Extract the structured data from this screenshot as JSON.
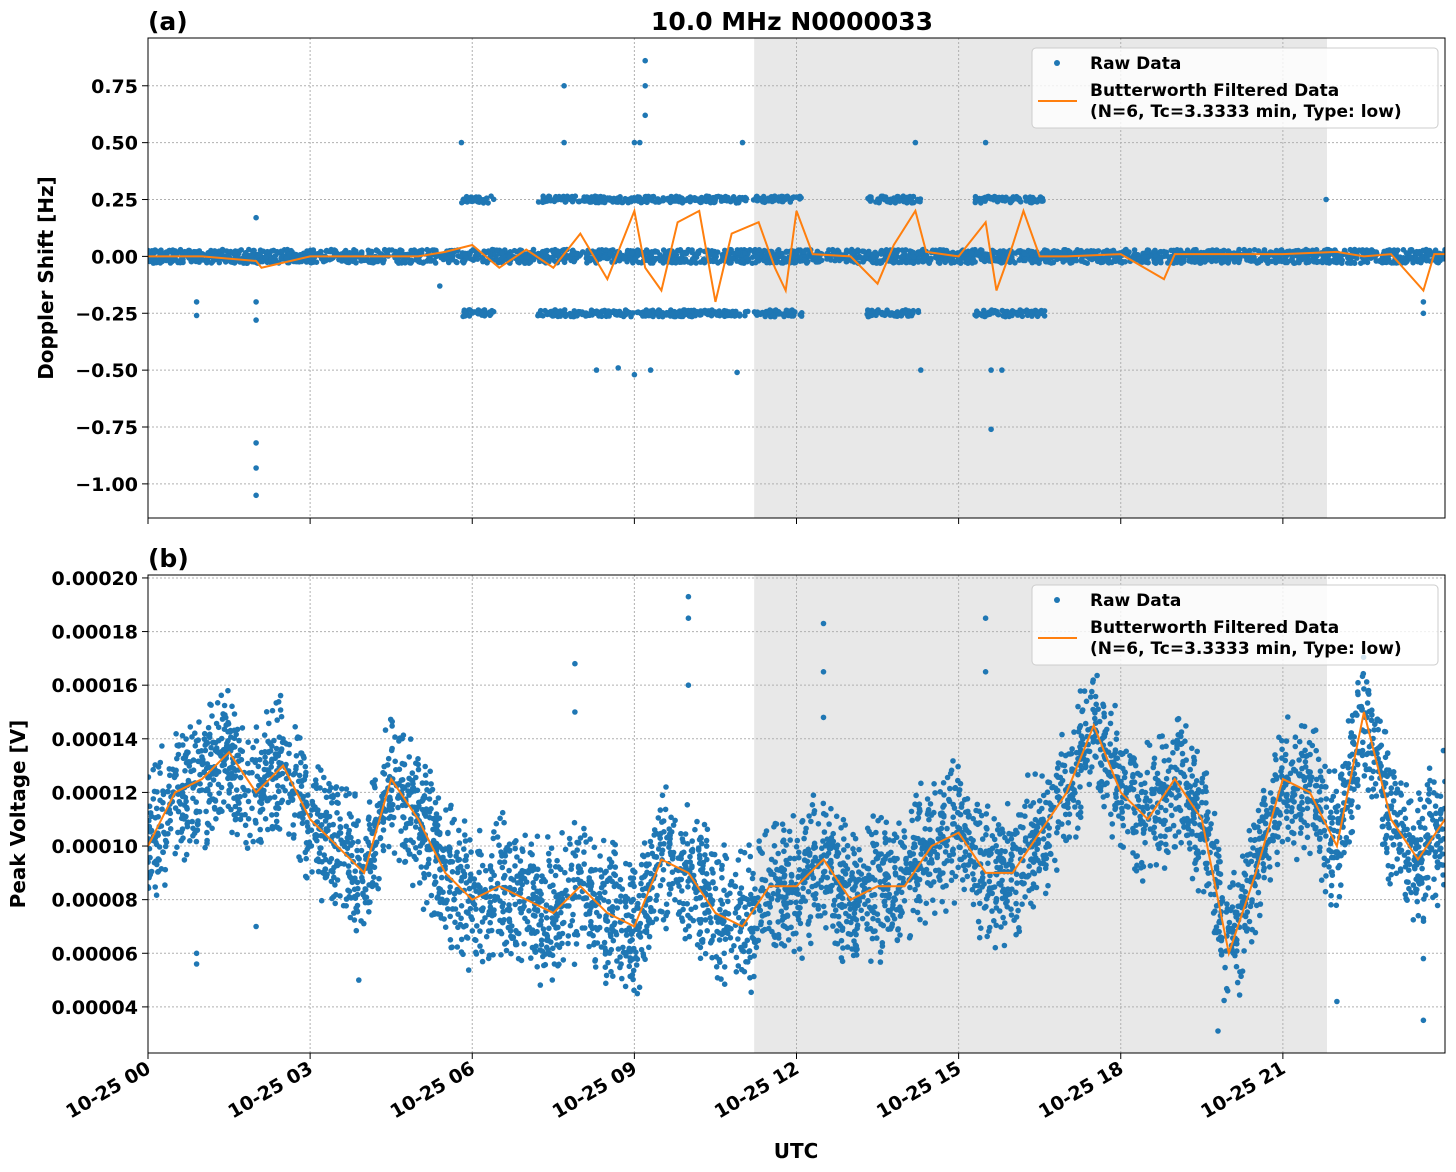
{
  "title": "10.0 MHz N0000033",
  "colors": {
    "raw": "#1f77b4",
    "filtered": "#ff7f0e",
    "shade": "#e8e8e8"
  },
  "legend": {
    "raw": "Raw Data",
    "filtered_line1": "Butterworth Filtered Data",
    "filtered_line2": "(N=6, Tc=3.3333 min, Type: low)",
    "placement": "upper right"
  },
  "xlabel": "UTC",
  "x_ticks": [
    "10-25 00",
    "10-25 03",
    "10-25 06",
    "10-25 09",
    "10-25 12",
    "10-25 15",
    "10-25 18",
    "10-25 21"
  ],
  "x_tick_hours": [
    0,
    3,
    6,
    9,
    12,
    15,
    18,
    21
  ],
  "shaded_interval_utc": [
    "10-25 11:13",
    "10-25 21:49"
  ],
  "chart_data": [
    {
      "type": "scatter",
      "panel_label": "(a)",
      "ylabel": "Doppler Shift [Hz]",
      "xlim_hours": [
        0,
        24
      ],
      "ylim": [
        -1.15,
        0.96
      ],
      "y_ticks": [
        0.75,
        0.5,
        0.25,
        0,
        -0.25,
        -0.5,
        -0.75,
        -1.0
      ],
      "y_tick_labels": [
        "0.75",
        "0.50",
        "0.25",
        "0.00",
        "−0.25",
        "−0.50",
        "−0.75",
        "−1.00"
      ],
      "grid": true,
      "raw_band": {
        "center": 0.0,
        "half_width": 0.03
      },
      "raw_clusters": [
        {
          "from_hour": 5.8,
          "to_hour": 6.4,
          "values": [
            0.25,
            -0.25
          ]
        },
        {
          "from_hour": 7.2,
          "to_hour": 11.1,
          "values": [
            0.25,
            -0.25
          ]
        },
        {
          "from_hour": 11.2,
          "to_hour": 12.1,
          "values": [
            0.25,
            -0.25
          ]
        },
        {
          "from_hour": 13.3,
          "to_hour": 14.3,
          "values": [
            0.25,
            -0.25
          ]
        },
        {
          "from_hour": 15.3,
          "to_hour": 16.6,
          "values": [
            0.25,
            -0.25
          ]
        }
      ],
      "raw_outliers": [
        [
          0.9,
          -0.2
        ],
        [
          0.9,
          -0.26
        ],
        [
          2.0,
          0.17
        ],
        [
          2.0,
          -0.2
        ],
        [
          2.0,
          -0.28
        ],
        [
          2.0,
          -0.82
        ],
        [
          2.0,
          -0.93
        ],
        [
          2.0,
          -1.05
        ],
        [
          5.8,
          0.5
        ],
        [
          5.4,
          -0.13
        ],
        [
          7.7,
          0.75
        ],
        [
          7.7,
          0.5
        ],
        [
          8.3,
          -0.5
        ],
        [
          8.7,
          -0.49
        ],
        [
          9.0,
          0.5
        ],
        [
          9.2,
          0.86
        ],
        [
          9.2,
          0.75
        ],
        [
          9.2,
          0.62
        ],
        [
          9.1,
          0.5
        ],
        [
          9.3,
          -0.5
        ],
        [
          9.0,
          -0.52
        ],
        [
          10.9,
          -0.51
        ],
        [
          11.0,
          0.5
        ],
        [
          14.2,
          0.5
        ],
        [
          14.3,
          -0.5
        ],
        [
          15.5,
          0.5
        ],
        [
          15.6,
          -0.5
        ],
        [
          15.6,
          -0.76
        ],
        [
          15.8,
          -0.5
        ],
        [
          21.8,
          0.25
        ],
        [
          23.6,
          -0.2
        ],
        [
          23.6,
          -0.25
        ]
      ],
      "filtered": {
        "x_hours": [
          0,
          1,
          2,
          2.1,
          3,
          4,
          5,
          5.5,
          6,
          6.5,
          7,
          7.5,
          8,
          8.5,
          9,
          9.2,
          9.5,
          9.8,
          10.2,
          10.5,
          10.8,
          11.3,
          11.6,
          11.8,
          12,
          12.3,
          13,
          13.5,
          13.8,
          14.2,
          14.4,
          15,
          15.5,
          15.7,
          16,
          16.2,
          16.5,
          17,
          18,
          18.8,
          19,
          20,
          21,
          22,
          22.5,
          23,
          23.6,
          23.8,
          24
        ],
        "values": [
          0,
          0,
          -0.02,
          -0.05,
          0,
          0,
          0,
          0.02,
          0.05,
          -0.05,
          0.03,
          -0.05,
          0.1,
          -0.1,
          0.2,
          -0.05,
          -0.15,
          0.15,
          0.2,
          -0.2,
          0.1,
          0.15,
          -0.05,
          -0.15,
          0.2,
          0.01,
          0,
          -0.12,
          0.05,
          0.2,
          0.02,
          0,
          0.15,
          -0.15,
          0.05,
          0.2,
          0,
          0,
          0.01,
          -0.1,
          0.01,
          0.01,
          0.01,
          0.02,
          0,
          0.01,
          -0.15,
          0.01,
          0.01
        ]
      }
    },
    {
      "type": "scatter",
      "panel_label": "(b)",
      "ylabel": "Peak Voltage [V]",
      "xlim_hours": [
        0,
        24
      ],
      "ylim": [
        2.28e-05,
        0.0002011
      ],
      "y_ticks": [
        4e-05,
        6e-05,
        8e-05,
        0.0001,
        0.00012,
        0.00014,
        0.00016,
        0.00018,
        0.0002
      ],
      "y_tick_labels": [
        "0.00004",
        "0.00006",
        "0.00008",
        "0.00010",
        "0.00012",
        "0.00014",
        "0.00016",
        "0.00018",
        "0.00020"
      ],
      "grid": true,
      "filtered": {
        "x_hours": [
          0,
          0.5,
          1,
          1.5,
          2,
          2.5,
          3,
          3.5,
          4,
          4.5,
          5,
          5.5,
          6,
          6.5,
          7,
          7.5,
          8,
          8.5,
          9,
          9.5,
          10,
          10.5,
          11,
          11.5,
          12,
          12.5,
          13,
          13.5,
          14,
          14.5,
          15,
          15.5,
          16,
          16.5,
          17,
          17.5,
          18,
          18.5,
          19,
          19.5,
          20,
          20.5,
          21,
          21.5,
          22,
          22.5,
          23,
          23.5,
          24
        ],
        "values": [
          0.0001,
          0.00012,
          0.000125,
          0.000135,
          0.00012,
          0.00013,
          0.00011,
          0.0001,
          9e-05,
          0.000125,
          0.00011,
          9e-05,
          8e-05,
          8.5e-05,
          8e-05,
          7.5e-05,
          8.5e-05,
          7.5e-05,
          7e-05,
          9.5e-05,
          9e-05,
          7.5e-05,
          7e-05,
          8.5e-05,
          8.5e-05,
          9.5e-05,
          8e-05,
          8.5e-05,
          8.5e-05,
          0.0001,
          0.000105,
          9e-05,
          9e-05,
          0.000105,
          0.00012,
          0.000145,
          0.00012,
          0.00011,
          0.000125,
          0.00011,
          6e-05,
          9e-05,
          0.000125,
          0.00012,
          0.0001,
          0.00015,
          0.00011,
          9.5e-05,
          0.00011
        ]
      },
      "raw_band_half_width": 3e-05,
      "raw_outliers": [
        [
          0.9,
          6e-05
        ],
        [
          0.9,
          5.6e-05
        ],
        [
          2.0,
          7e-05
        ],
        [
          3.9,
          5e-05
        ],
        [
          7.9,
          0.000168
        ],
        [
          7.9,
          0.00015
        ],
        [
          10.0,
          0.000193
        ],
        [
          10.0,
          0.000185
        ],
        [
          10.0,
          0.00016
        ],
        [
          12.5,
          0.000183
        ],
        [
          12.5,
          0.000165
        ],
        [
          12.5,
          0.000148
        ],
        [
          15.5,
          0.000185
        ],
        [
          15.5,
          0.000165
        ],
        [
          19.8,
          3.1e-05
        ],
        [
          22.0,
          4.2e-05
        ],
        [
          23.6,
          3.5e-05
        ],
        [
          23.6,
          5.8e-05
        ]
      ]
    }
  ]
}
